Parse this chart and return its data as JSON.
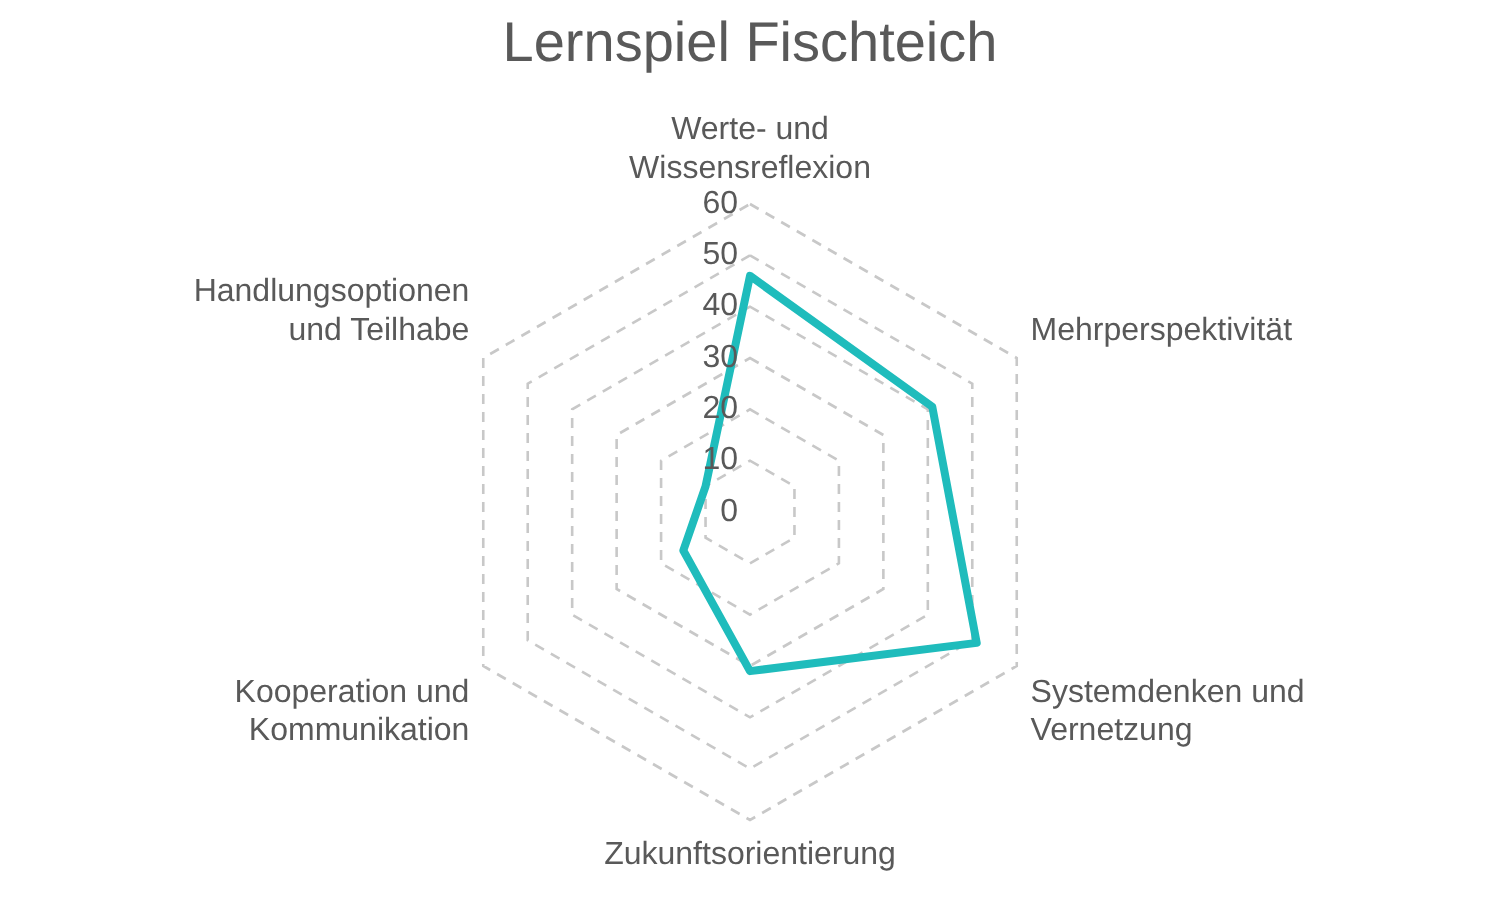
{
  "chart_data": {
    "type": "radar",
    "title": "Lernspiel Fischteich",
    "categories": [
      "Werte- und Wissensreflexion",
      "Mehrperspektivität",
      "Systemdenken und Vernetzung",
      "Zukunftsorientierung",
      "Kooperation und Kommunikation",
      "Handlungsoptionen und Teilhabe"
    ],
    "series": [
      {
        "color": "#1fbcbc",
        "values": [
          46,
          41,
          51,
          31,
          15,
          10
        ]
      }
    ],
    "ylim": [
      0,
      60
    ],
    "yticks": [
      0,
      10,
      20,
      30,
      40,
      50,
      60
    ],
    "grid": true,
    "legend": false,
    "marker": "none"
  }
}
